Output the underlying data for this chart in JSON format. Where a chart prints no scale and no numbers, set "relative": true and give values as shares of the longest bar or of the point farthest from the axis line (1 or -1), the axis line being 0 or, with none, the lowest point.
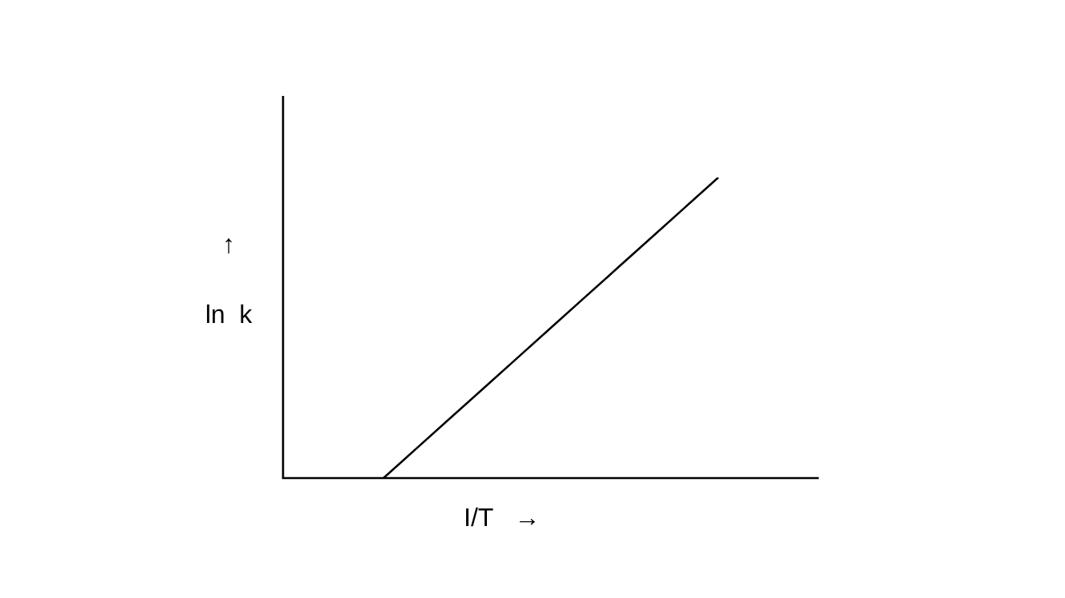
{
  "chart_data": {
    "type": "line",
    "relative": true,
    "xlabel": "I/T   →",
    "ylabel": "↑\nln  k",
    "categories": [
      null,
      null,
      null,
      null,
      null,
      null,
      null,
      null,
      null,
      null,
      null,
      null,
      null,
      null,
      null,
      null,
      null
    ],
    "series": [
      {
        "color": "#000000",
        "values": [
          null,
          null,
          null,
          0,
          0.1,
          0.2,
          0.3,
          0.4,
          0.5,
          0.6,
          0.7,
          0.8,
          0.9,
          1,
          null,
          null,
          null
        ]
      }
    ],
    "legend": false,
    "marker": "none",
    "line_style": "solid"
  }
}
